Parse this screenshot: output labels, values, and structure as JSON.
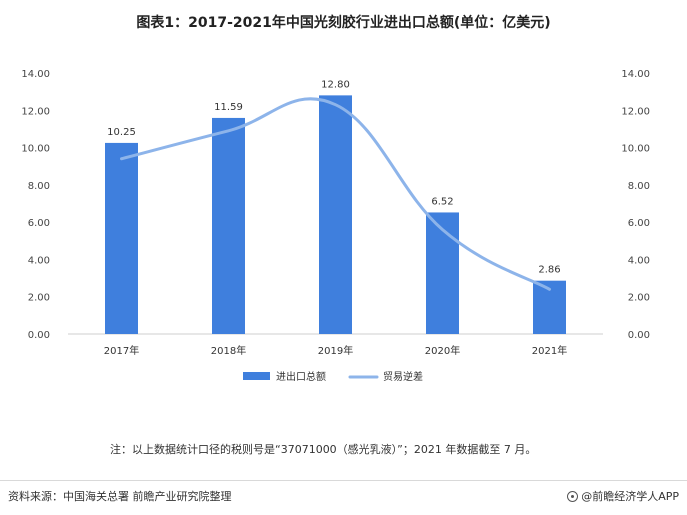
{
  "title": "图表1：2017-2021年中国光刻胶行业进出口总额(单位：亿美元)",
  "note": "注：以上数据统计口径的税则号是“37071000（感光乳液）”；2021 年数据截至 7 月。",
  "source": "资料来源：中国海关总署 前瞻产业研究院整理",
  "brand": "@前瞻经济学人APP",
  "colors": {
    "bar": "#3f7fdd",
    "line": "#8db4ea"
  },
  "chart_data": {
    "type": "bar",
    "categories": [
      "2017年",
      "2018年",
      "2019年",
      "2020年",
      "2021年"
    ],
    "series": [
      {
        "name": "进出口总额",
        "type": "bar",
        "values": [
          10.25,
          11.59,
          12.8,
          6.52,
          2.86
        ]
      },
      {
        "name": "贸易逆差",
        "type": "line",
        "values": [
          9.4,
          10.9,
          12.3,
          5.6,
          2.4
        ]
      }
    ],
    "data_labels": [
      "10.25",
      "11.59",
      "12.80",
      "6.52",
      "2.86"
    ],
    "y_ticks": [
      "0.00",
      "2.00",
      "4.00",
      "6.00",
      "8.00",
      "10.00",
      "12.00",
      "14.00"
    ],
    "ylim": [
      0,
      14
    ],
    "y2lim": [
      0,
      14
    ],
    "grid": false,
    "legend": "bottom"
  }
}
